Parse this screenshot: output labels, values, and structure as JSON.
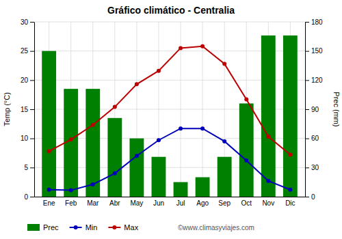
{
  "chart_data": {
    "type": "bar",
    "title": "Gráfico climático - Centralia",
    "categories": [
      "Ene",
      "Feb",
      "Mar",
      "Abr",
      "May",
      "Jun",
      "Jul",
      "Ago",
      "Sep",
      "Oct",
      "Nov",
      "Dic"
    ],
    "series": [
      {
        "name": "Prec",
        "type": "bar",
        "axis": "y2",
        "color": "#008000",
        "values": [
          150,
          111,
          111,
          81,
          60,
          41,
          15,
          20,
          41,
          96,
          166,
          166
        ]
      },
      {
        "name": "Min",
        "type": "line",
        "color": "#0000bb",
        "marker": "circle",
        "values": [
          1.2,
          1.1,
          2.1,
          4.0,
          7.0,
          9.7,
          11.7,
          11.7,
          9.5,
          6.2,
          2.7,
          1.2
        ]
      },
      {
        "name": "Max",
        "type": "line",
        "color": "#bb0000",
        "marker": "circle",
        "values": [
          7.8,
          9.8,
          12.3,
          15.4,
          19.3,
          21.6,
          25.5,
          25.8,
          22.8,
          16.7,
          10.3,
          7.2
        ]
      }
    ],
    "y_label": "Temp (°C)",
    "y2_label": "Prec (mm)",
    "ylim": [
      0,
      30
    ],
    "yticks": [
      0,
      5,
      10,
      15,
      20,
      25,
      30
    ],
    "y2lim": [
      0,
      180
    ],
    "y2ticks": [
      0,
      30,
      60,
      90,
      120,
      150,
      180
    ],
    "grid": true,
    "legend": "bottom",
    "annotations": [
      "©www.climasyviajes.com"
    ]
  }
}
